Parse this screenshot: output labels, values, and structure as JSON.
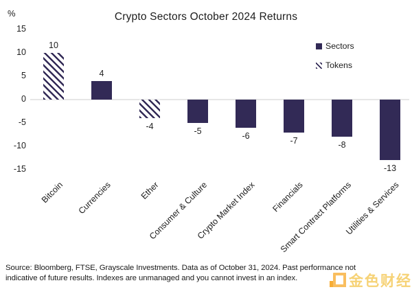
{
  "title": "Crypto Sectors October 2024 Returns",
  "chart_data": {
    "type": "bar",
    "title": "Crypto Sectors October 2024 Returns",
    "unit": "%",
    "categories": [
      "Bitcoin",
      "Currencies",
      "Ether",
      "Consumer & Culture",
      "Crypto Market Index",
      "Financials",
      "Smart Contract Platforms",
      "Utilities & Services"
    ],
    "values": [
      10,
      4,
      -4,
      -5,
      -6,
      -7,
      -8,
      -13
    ],
    "bar_styles": [
      "hatched",
      "solid",
      "hatched",
      "solid",
      "solid",
      "solid",
      "solid",
      "solid"
    ],
    "value_labels": [
      "10",
      "4",
      "-4",
      "-5",
      "-6",
      "-7",
      "-8",
      "-13"
    ],
    "yticks": [
      15,
      10,
      5,
      0,
      -5,
      -10,
      -15
    ],
    "ylim": [
      -15,
      15
    ],
    "grid": "zero-line-only",
    "legend_position": "top-right",
    "legend": [
      {
        "label": "Sectors",
        "swatch": "solid"
      },
      {
        "label": "Tokens",
        "swatch": "hatched"
      }
    ]
  },
  "colors": {
    "bar": "#322a56",
    "hatch_background": "#ffffff",
    "zero_line": "#e6e6e6",
    "axis_text": "#1e1e1e",
    "watermark_orange": "#f7a21a",
    "watermark_yellow": "#f3c348"
  },
  "footer": {
    "line1": "Source: Bloomberg, FTSE, Grayscale Investments. Data as of October 31, 2024. Past performance not",
    "line2": "indicative of future results. Indexes are unmanaged and you cannot invest in an index."
  },
  "watermark": {
    "text": "金色财经"
  }
}
